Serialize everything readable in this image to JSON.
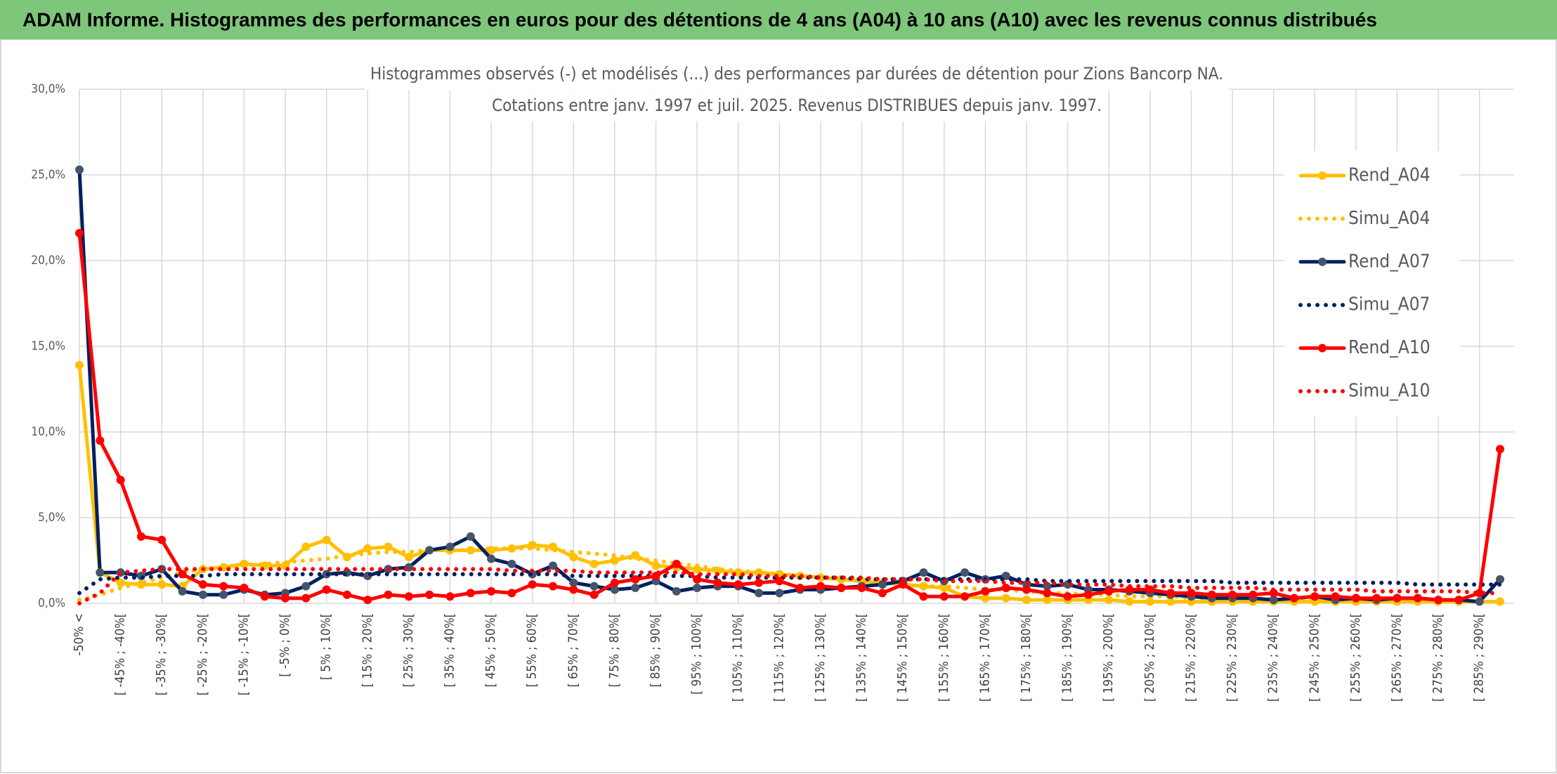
{
  "header": {
    "title": "ADAM Informe. Histogrammes des performances en euros pour des détentions de 4 ans (A04) à 10 ans (A10) avec les revenus connus distribués"
  },
  "chart_data": {
    "type": "line",
    "title": "Histogrammes observés (-) et modélisés (...) des performances par durées de détention pour Zions Bancorp NA.",
    "subtitle": "Cotations entre janv. 1997 et juil. 2025. Revenus DISTRIBUES depuis janv. 1997.",
    "categories": [
      "-50% <",
      null,
      "[ -45% ; -40%[",
      null,
      "[ -35% ; -30%[",
      null,
      "[ -25% ; -20%[",
      null,
      "[ -15% ; -10%[",
      null,
      "[ -5% ; 0%[",
      null,
      "[ 5% ; 10%[",
      null,
      "[ 15% ; 20%[",
      null,
      "[ 25% ; 30%[",
      null,
      "[ 35% ; 40%[",
      null,
      "[ 45% ; 50%[",
      null,
      "[ 55% ; 60%[",
      null,
      "[ 65% ; 70%[",
      null,
      "[ 75% ; 80%[",
      null,
      "[ 85% ; 90%[",
      null,
      "[ 95% ; 100%[",
      null,
      "[ 105% ; 110%[",
      null,
      "[ 115% ; 120%[",
      null,
      "[ 125% ; 130%[",
      null,
      "[ 135% ; 140%[",
      null,
      "[ 145% ; 150%[",
      null,
      "[ 155% ; 160%[",
      null,
      "[ 165% ; 170%[",
      null,
      "[ 175% ; 180%[",
      null,
      "[ 185% ; 190%[",
      null,
      "[ 195% ; 200%[",
      null,
      "[ 205% ; 210%[",
      null,
      "[ 215% ; 220%[",
      null,
      "[ 225% ; 230%[",
      null,
      "[ 235% ; 240%[",
      null,
      "[ 245% ; 250%[",
      null,
      "[ 255% ; 260%[",
      null,
      "[ 265% ; 270%[",
      null,
      "[ 275% ; 280%[",
      null,
      "[ 285% ; 290%[",
      null
    ],
    "series": [
      {
        "name": "Rend_A04",
        "color": "#ffc000",
        "marker": true,
        "marker_color": "#ffc000",
        "dotted": false,
        "values": [
          13.9,
          1.8,
          1.2,
          1.1,
          1.1,
          1.0,
          2.0,
          2.1,
          2.3,
          2.2,
          2.2,
          3.3,
          3.7,
          2.7,
          3.2,
          3.3,
          2.7,
          3.1,
          3.1,
          3.1,
          3.1,
          3.2,
          3.4,
          3.3,
          2.7,
          2.3,
          2.5,
          2.8,
          2.2,
          2.1,
          2.0,
          1.9,
          1.8,
          1.8,
          1.7,
          1.6,
          1.5,
          1.4,
          1.3,
          1.2,
          1.1,
          1.0,
          0.9,
          0.4,
          0.3,
          0.3,
          0.2,
          0.2,
          0.2,
          0.2,
          0.2,
          0.1,
          0.1,
          0.1,
          0.1,
          0.1,
          0.1,
          0.1,
          0.1,
          0.1,
          0.1,
          0.1,
          0.1,
          0.1,
          0.1,
          0.1,
          0.1,
          0.1,
          0.1,
          0.1
        ]
      },
      {
        "name": "Simu_A04",
        "color": "#ffc000",
        "marker": false,
        "dotted": true,
        "values": [
          0.2,
          0.5,
          0.9,
          1.2,
          1.5,
          1.8,
          2.0,
          2.1,
          2.2,
          2.3,
          2.4,
          2.5,
          2.6,
          2.8,
          2.9,
          3.0,
          3.0,
          3.1,
          3.1,
          3.1,
          3.2,
          3.2,
          3.2,
          3.1,
          3.0,
          2.9,
          2.8,
          2.6,
          2.5,
          2.3,
          2.2,
          2.0,
          1.9,
          1.8,
          1.7,
          1.6,
          1.5,
          1.4,
          1.3,
          1.2,
          1.1,
          1.0,
          1.0,
          0.9,
          0.8,
          0.8,
          0.7,
          0.6,
          0.6,
          0.5,
          0.5,
          0.4,
          0.4,
          0.4,
          0.3,
          0.3,
          0.3,
          0.3,
          0.2,
          0.2,
          0.2,
          0.2,
          0.2,
          0.2,
          0.1,
          0.1,
          0.1,
          0.1,
          0.1,
          0.1
        ]
      },
      {
        "name": "Rend_A07",
        "color": "#002060",
        "marker": true,
        "marker_color": "#44546a",
        "dotted": false,
        "values": [
          25.3,
          1.8,
          1.8,
          1.6,
          2.0,
          0.7,
          0.5,
          0.5,
          0.8,
          0.5,
          0.6,
          1.0,
          1.7,
          1.8,
          1.6,
          2.0,
          2.1,
          3.1,
          3.3,
          3.9,
          2.6,
          2.3,
          1.7,
          2.2,
          1.2,
          1.0,
          0.8,
          0.9,
          1.3,
          0.7,
          0.9,
          1.0,
          1.0,
          0.6,
          0.6,
          0.8,
          0.8,
          0.9,
          1.0,
          1.1,
          1.3,
          1.8,
          1.3,
          1.8,
          1.4,
          1.6,
          1.1,
          1.0,
          1.1,
          0.8,
          0.8,
          0.7,
          0.6,
          0.5,
          0.4,
          0.3,
          0.3,
          0.3,
          0.2,
          0.3,
          0.4,
          0.2,
          0.3,
          0.2,
          0.3,
          0.3,
          0.2,
          0.2,
          0.1,
          1.4
        ]
      },
      {
        "name": "Simu_A07",
        "color": "#002060",
        "marker": false,
        "dotted": true,
        "values": [
          0.6,
          1.4,
          1.5,
          1.5,
          1.6,
          1.6,
          1.6,
          1.7,
          1.7,
          1.7,
          1.7,
          1.7,
          1.7,
          1.7,
          1.7,
          1.7,
          1.7,
          1.7,
          1.7,
          1.7,
          1.7,
          1.7,
          1.7,
          1.7,
          1.6,
          1.6,
          1.6,
          1.6,
          1.6,
          1.6,
          1.6,
          1.5,
          1.5,
          1.5,
          1.5,
          1.5,
          1.5,
          1.5,
          1.4,
          1.4,
          1.4,
          1.4,
          1.4,
          1.4,
          1.4,
          1.4,
          1.4,
          1.3,
          1.3,
          1.3,
          1.3,
          1.3,
          1.3,
          1.3,
          1.3,
          1.3,
          1.2,
          1.2,
          1.2,
          1.2,
          1.2,
          1.2,
          1.2,
          1.2,
          1.2,
          1.1,
          1.1,
          1.1,
          1.1,
          1.1
        ]
      },
      {
        "name": "Rend_A10",
        "color": "#ff0000",
        "marker": true,
        "marker_color": "#ff0000",
        "dotted": false,
        "values": [
          21.6,
          9.5,
          7.2,
          3.9,
          3.7,
          1.7,
          1.1,
          1.0,
          0.9,
          0.4,
          0.3,
          0.3,
          0.8,
          0.5,
          0.2,
          0.5,
          0.4,
          0.5,
          0.4,
          0.6,
          0.7,
          0.6,
          1.1,
          1.0,
          0.8,
          0.5,
          1.2,
          1.4,
          1.6,
          2.3,
          1.4,
          1.2,
          1.1,
          1.2,
          1.3,
          0.9,
          1.0,
          0.9,
          0.9,
          0.6,
          1.1,
          0.4,
          0.4,
          0.4,
          0.7,
          0.9,
          0.8,
          0.6,
          0.4,
          0.5,
          0.7,
          0.8,
          0.8,
          0.6,
          0.6,
          0.5,
          0.5,
          0.5,
          0.6,
          0.3,
          0.4,
          0.4,
          0.3,
          0.3,
          0.3,
          0.3,
          0.2,
          0.2,
          0.6,
          9.0
        ]
      },
      {
        "name": "Simu_A10",
        "color": "#ff0000",
        "marker": false,
        "dotted": true,
        "values": [
          0.0,
          0.6,
          1.8,
          1.9,
          2.0,
          2.0,
          2.0,
          2.0,
          2.0,
          2.0,
          2.0,
          2.0,
          2.0,
          2.0,
          2.0,
          2.0,
          2.0,
          2.0,
          2.0,
          2.0,
          2.0,
          1.9,
          1.9,
          1.9,
          1.9,
          1.8,
          1.8,
          1.8,
          1.8,
          1.8,
          1.7,
          1.7,
          1.7,
          1.6,
          1.6,
          1.6,
          1.5,
          1.5,
          1.5,
          1.4,
          1.4,
          1.4,
          1.3,
          1.3,
          1.3,
          1.2,
          1.2,
          1.2,
          1.1,
          1.1,
          1.1,
          1.0,
          1.0,
          1.0,
          0.9,
          0.9,
          0.9,
          0.9,
          0.8,
          0.8,
          0.8,
          0.8,
          0.8,
          0.7,
          0.7,
          0.7,
          0.7,
          0.7,
          0.6,
          0.6
        ]
      }
    ],
    "ylim": [
      0,
      30
    ],
    "yticks": [
      {
        "value": 0,
        "label": "0,0%"
      },
      {
        "value": 5,
        "label": "5,0%"
      },
      {
        "value": 10,
        "label": "10,0%"
      },
      {
        "value": 15,
        "label": "15,0%"
      },
      {
        "value": 20,
        "label": "20,0%"
      },
      {
        "value": 25,
        "label": "25,0%"
      },
      {
        "value": 30,
        "label": "30,0%"
      }
    ],
    "grid": true,
    "legend": "right"
  }
}
